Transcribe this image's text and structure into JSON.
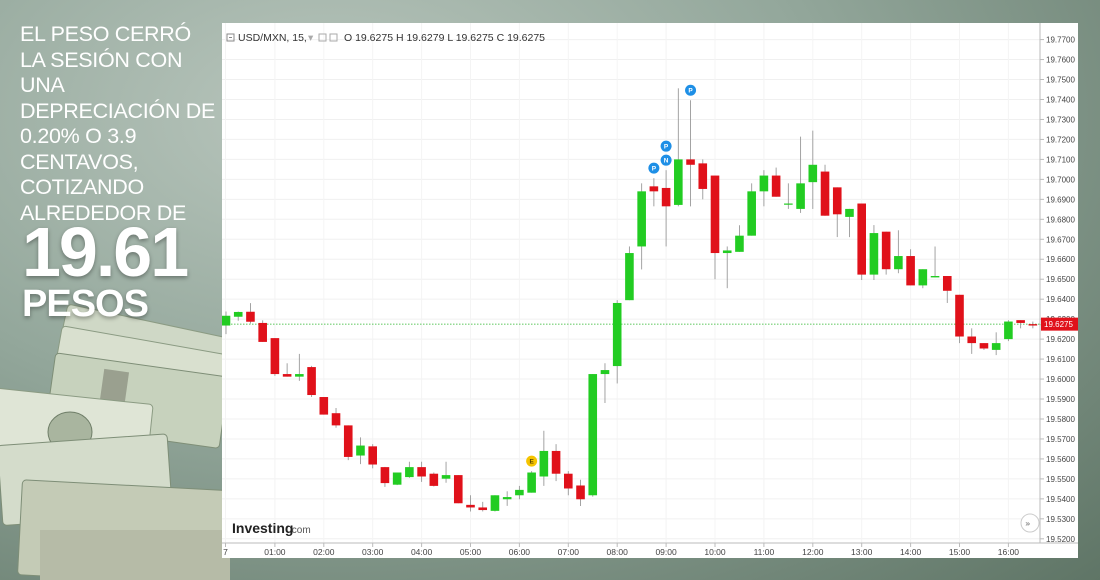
{
  "headline": {
    "text": "EL PESO CERRÓ LA SESIÓN CON UNA DEPRECIACIÓN DE 0.20% O 3.9 CENTAVOS, COTIZANDO ALREDEDOR DE",
    "price": "19.61",
    "unit": "PESOS"
  },
  "legend": {
    "symbol": "USD/MXN, 15,",
    "ohlc": "O 19.6275  H 19.6279  L 19.6275  C 19.6275"
  },
  "brand": {
    "name": "Investing",
    "suffix": ".com"
  },
  "scroll_icon": "double-chevron-right-icon",
  "colors": {
    "up": "#22cc22",
    "down": "#e0111a",
    "last_price_label": "#e0111a",
    "price_line": "#28b428",
    "marker_blue": "#1e8fe6",
    "marker_yellow": "#f5c400"
  },
  "chart_data": {
    "type": "candlestick",
    "symbol": "USD/MXN",
    "interval": "15",
    "ylim": [
      19.5179,
      19.7783
    ],
    "y_ticks": [
      "19.7700",
      "19.7600",
      "19.7500",
      "19.7400",
      "19.7300",
      "19.7200",
      "19.7100",
      "19.7000",
      "19.6900",
      "19.6800",
      "19.6700",
      "19.6600",
      "19.6500",
      "19.6400",
      "19.6300",
      "19.6200",
      "19.6100",
      "19.6000",
      "19.5900",
      "19.5800",
      "19.5700",
      "19.5600",
      "19.5500",
      "19.5400",
      "19.5300",
      "19.5200"
    ],
    "x_ticks": [
      "7",
      "01:00",
      "02:00",
      "03:00",
      "04:00",
      "05:00",
      "06:00",
      "07:00",
      "08:00",
      "09:00",
      "10:00",
      "11:00",
      "12:00",
      "13:00",
      "14:00",
      "15:00",
      "16:00"
    ],
    "last_price": "19.6275",
    "candles": [
      {
        "time": "00:00",
        "o": 19.6268,
        "h": 19.6338,
        "l": 19.6225,
        "c": 19.6317
      },
      {
        "time": "00:15",
        "o": 19.6312,
        "h": 19.6338,
        "l": 19.6292,
        "c": 19.6336
      },
      {
        "time": "00:30",
        "o": 19.6337,
        "h": 19.638,
        "l": 19.6278,
        "c": 19.6287
      },
      {
        "time": "00:45",
        "o": 19.6281,
        "h": 19.6294,
        "l": 19.6186,
        "c": 19.6186
      },
      {
        "time": "01:00",
        "o": 19.6205,
        "h": 19.6205,
        "l": 19.6016,
        "c": 19.6025
      },
      {
        "time": "01:15",
        "o": 19.6025,
        "h": 19.6079,
        "l": 19.6012,
        "c": 19.6012
      },
      {
        "time": "01:30",
        "o": 19.6012,
        "h": 19.6126,
        "l": 19.5991,
        "c": 19.6025
      },
      {
        "time": "01:45",
        "o": 19.606,
        "h": 19.6066,
        "l": 19.591,
        "c": 19.592
      },
      {
        "time": "02:00",
        "o": 19.591,
        "h": 19.591,
        "l": 19.5822,
        "c": 19.5822
      },
      {
        "time": "02:15",
        "o": 19.5829,
        "h": 19.5855,
        "l": 19.5756,
        "c": 19.5768
      },
      {
        "time": "02:30",
        "o": 19.5768,
        "h": 19.5768,
        "l": 19.5594,
        "c": 19.561
      },
      {
        "time": "02:45",
        "o": 19.5617,
        "h": 19.5708,
        "l": 19.5574,
        "c": 19.5667
      },
      {
        "time": "03:00",
        "o": 19.5663,
        "h": 19.5674,
        "l": 19.5553,
        "c": 19.5572
      },
      {
        "time": "03:15",
        "o": 19.5559,
        "h": 19.556,
        "l": 19.546,
        "c": 19.5479
      },
      {
        "time": "03:30",
        "o": 19.5471,
        "h": 19.5532,
        "l": 19.5469,
        "c": 19.5532
      },
      {
        "time": "03:45",
        "o": 19.5509,
        "h": 19.5586,
        "l": 19.5505,
        "c": 19.5559
      },
      {
        "time": "04:00",
        "o": 19.5559,
        "h": 19.5586,
        "l": 19.5485,
        "c": 19.5512
      },
      {
        "time": "04:15",
        "o": 19.5526,
        "h": 19.5532,
        "l": 19.5462,
        "c": 19.5465
      },
      {
        "time": "04:30",
        "o": 19.5501,
        "h": 19.5586,
        "l": 19.5481,
        "c": 19.5519
      },
      {
        "time": "04:45",
        "o": 19.5519,
        "h": 19.5519,
        "l": 19.5378,
        "c": 19.5378
      },
      {
        "time": "05:00",
        "o": 19.537,
        "h": 19.5418,
        "l": 19.5337,
        "c": 19.5357
      },
      {
        "time": "05:15",
        "o": 19.5357,
        "h": 19.5385,
        "l": 19.5337,
        "c": 19.5344
      },
      {
        "time": "05:30",
        "o": 19.534,
        "h": 19.5418,
        "l": 19.5337,
        "c": 19.5418
      },
      {
        "time": "05:45",
        "o": 19.5398,
        "h": 19.5438,
        "l": 19.5365,
        "c": 19.5409
      },
      {
        "time": "06:00",
        "o": 19.5418,
        "h": 19.5465,
        "l": 19.5398,
        "c": 19.5445
      },
      {
        "time": "06:15",
        "o": 19.5431,
        "h": 19.5539,
        "l": 19.5431,
        "c": 19.5532
      },
      {
        "time": "06:30",
        "o": 19.5512,
        "h": 19.5741,
        "l": 19.5465,
        "c": 19.564
      },
      {
        "time": "06:45",
        "o": 19.564,
        "h": 19.5674,
        "l": 19.5489,
        "c": 19.5526
      },
      {
        "time": "07:00",
        "o": 19.5526,
        "h": 19.5539,
        "l": 19.5418,
        "c": 19.5452
      },
      {
        "time": "07:15",
        "o": 19.5467,
        "h": 19.5496,
        "l": 19.5364,
        "c": 19.5398
      },
      {
        "time": "07:30",
        "o": 19.5418,
        "h": 19.6025,
        "l": 19.5411,
        "c": 19.6025
      },
      {
        "time": "07:45",
        "o": 19.6025,
        "h": 19.6079,
        "l": 19.588,
        "c": 19.6045
      },
      {
        "time": "08:00",
        "o": 19.6065,
        "h": 19.6395,
        "l": 19.5978,
        "c": 19.6381
      },
      {
        "time": "08:15",
        "o": 19.6395,
        "h": 19.6664,
        "l": 19.6395,
        "c": 19.6631
      },
      {
        "time": "08:30",
        "o": 19.6664,
        "h": 19.698,
        "l": 19.6549,
        "c": 19.694
      },
      {
        "time": "08:45",
        "o": 19.6965,
        "h": 19.7006,
        "l": 19.6865,
        "c": 19.694
      },
      {
        "time": "09:00",
        "o": 19.6957,
        "h": 19.7046,
        "l": 19.6664,
        "c": 19.6865
      },
      {
        "time": "09:15",
        "o": 19.6872,
        "h": 19.7456,
        "l": 19.6865,
        "c": 19.71
      },
      {
        "time": "09:30",
        "o": 19.71,
        "h": 19.7396,
        "l": 19.6865,
        "c": 19.7073
      },
      {
        "time": "09:45",
        "o": 19.708,
        "h": 19.71,
        "l": 19.69,
        "c": 19.6952
      },
      {
        "time": "10:00",
        "o": 19.7019,
        "h": 19.7019,
        "l": 19.65,
        "c": 19.6631
      },
      {
        "time": "10:15",
        "o": 19.6631,
        "h": 19.6664,
        "l": 19.6455,
        "c": 19.6644
      },
      {
        "time": "10:30",
        "o": 19.6637,
        "h": 19.677,
        "l": 19.6637,
        "c": 19.6718
      },
      {
        "time": "10:45",
        "o": 19.6718,
        "h": 19.698,
        "l": 19.6718,
        "c": 19.694
      },
      {
        "time": "11:00",
        "o": 19.694,
        "h": 19.7046,
        "l": 19.6865,
        "c": 19.7019
      },
      {
        "time": "11:15",
        "o": 19.7019,
        "h": 19.7059,
        "l": 19.6913,
        "c": 19.6913
      },
      {
        "time": "11:30",
        "o": 19.6879,
        "h": 19.698,
        "l": 19.6852,
        "c": 19.6879
      },
      {
        "time": "11:45",
        "o": 19.6852,
        "h": 19.7214,
        "l": 19.6832,
        "c": 19.698
      },
      {
        "time": "12:00",
        "o": 19.6986,
        "h": 19.7244,
        "l": 19.6852,
        "c": 19.7073
      },
      {
        "time": "12:15",
        "o": 19.7039,
        "h": 19.7073,
        "l": 19.6818,
        "c": 19.6818
      },
      {
        "time": "12:30",
        "o": 19.696,
        "h": 19.696,
        "l": 19.6711,
        "c": 19.6825
      },
      {
        "time": "12:45",
        "o": 19.6812,
        "h": 19.6852,
        "l": 19.6711,
        "c": 19.6852
      },
      {
        "time": "13:00",
        "o": 19.6879,
        "h": 19.6879,
        "l": 19.6496,
        "c": 19.6523
      },
      {
        "time": "13:15",
        "o": 19.6523,
        "h": 19.6771,
        "l": 19.6496,
        "c": 19.6731
      },
      {
        "time": "13:30",
        "o": 19.6738,
        "h": 19.6738,
        "l": 19.6523,
        "c": 19.655
      },
      {
        "time": "13:45",
        "o": 19.655,
        "h": 19.6745,
        "l": 19.653,
        "c": 19.6616
      },
      {
        "time": "14:00",
        "o": 19.6616,
        "h": 19.665,
        "l": 19.6469,
        "c": 19.6469
      },
      {
        "time": "14:15",
        "o": 19.6469,
        "h": 19.655,
        "l": 19.6455,
        "c": 19.655
      },
      {
        "time": "14:30",
        "o": 19.6509,
        "h": 19.6664,
        "l": 19.6509,
        "c": 19.6516
      },
      {
        "time": "14:45",
        "o": 19.6516,
        "h": 19.6516,
        "l": 19.6381,
        "c": 19.6442
      },
      {
        "time": "15:00",
        "o": 19.6422,
        "h": 19.6422,
        "l": 19.618,
        "c": 19.6213
      },
      {
        "time": "15:15",
        "o": 19.6213,
        "h": 19.6254,
        "l": 19.6126,
        "c": 19.618
      },
      {
        "time": "15:30",
        "o": 19.618,
        "h": 19.618,
        "l": 19.6146,
        "c": 19.6153
      },
      {
        "time": "15:45",
        "o": 19.6146,
        "h": 19.6234,
        "l": 19.612,
        "c": 19.618
      },
      {
        "time": "16:00",
        "o": 19.62,
        "h": 19.6295,
        "l": 19.619,
        "c": 19.6288
      },
      {
        "time": "16:15",
        "o": 19.6295,
        "h": 19.6295,
        "l": 19.6254,
        "c": 19.6281
      },
      {
        "time": "16:30",
        "o": 19.6275,
        "h": 19.6288,
        "l": 19.6254,
        "c": 19.6268
      },
      {
        "time": "16:45",
        "o": 19.6275,
        "h": 19.6279,
        "l": 19.6275,
        "c": 19.6275
      }
    ],
    "event_markers": [
      {
        "label": "E",
        "time": "06:15",
        "color": "yellow"
      },
      {
        "label": "P",
        "time": "08:45",
        "color": "blue"
      },
      {
        "label": "N",
        "time": "09:00",
        "color": "blue"
      },
      {
        "label": "P",
        "time": "09:00",
        "color": "blue",
        "upper": true
      },
      {
        "label": "P",
        "time": "09:30",
        "color": "blue"
      }
    ]
  }
}
